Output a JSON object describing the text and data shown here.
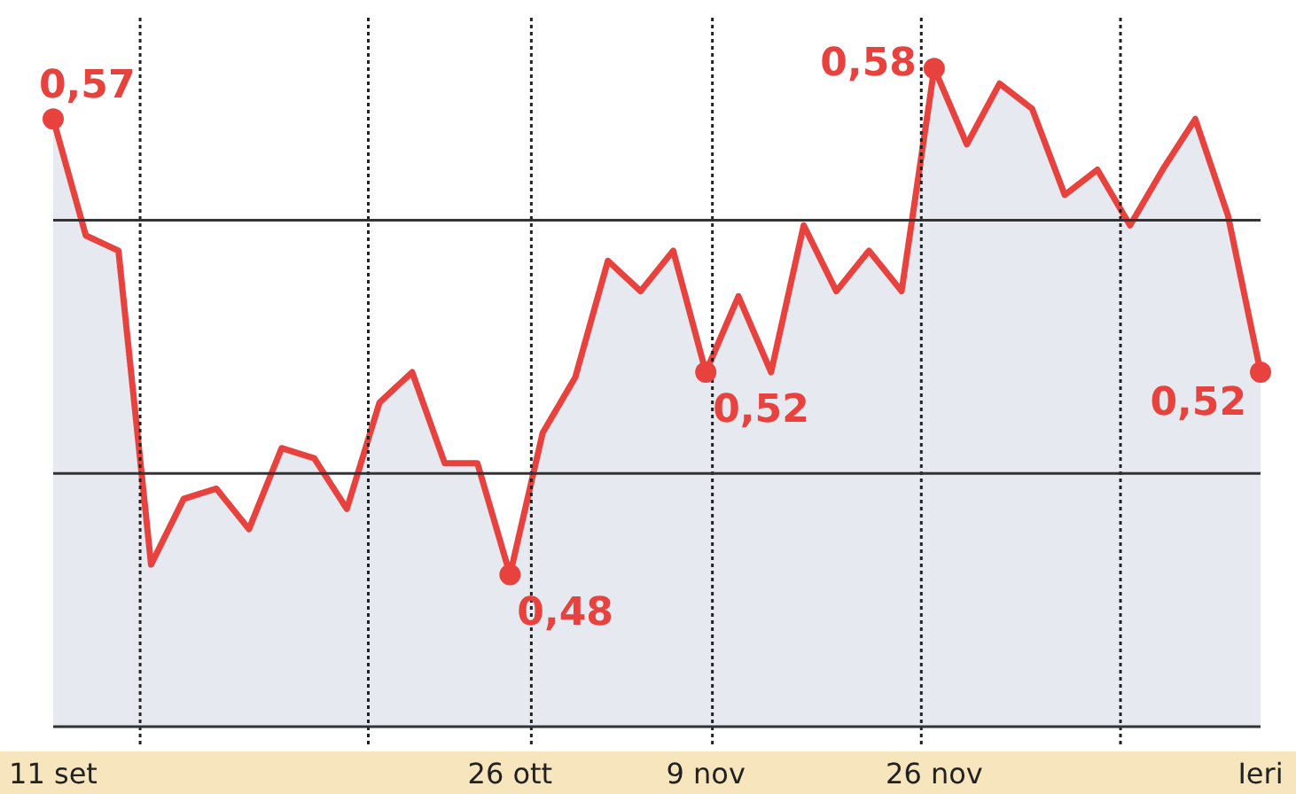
{
  "chart_data": {
    "type": "area",
    "categories": [
      "11 set",
      null,
      null,
      null,
      null,
      null,
      null,
      null,
      null,
      null,
      null,
      null,
      null,
      null,
      "26 ott",
      null,
      null,
      null,
      null,
      null,
      "9 nov",
      null,
      null,
      null,
      null,
      null,
      null,
      "26 nov",
      null,
      null,
      null,
      null,
      null,
      null,
      null,
      null,
      null,
      "Ieri"
    ],
    "series": [
      {
        "color": "#e8423f",
        "values": [
          0.57,
          0.547,
          0.544,
          0.482,
          0.495,
          0.497,
          0.489,
          0.505,
          0.503,
          0.493,
          0.514,
          0.52,
          0.502,
          0.502,
          0.48,
          0.508,
          0.519,
          0.542,
          0.536,
          0.544,
          0.52,
          0.535,
          0.52,
          0.549,
          0.536,
          0.544,
          0.536,
          0.58,
          0.565,
          0.577,
          0.572,
          0.555,
          0.56,
          0.549,
          0.56,
          0.57,
          0.551,
          0.52
        ],
        "value_labels": [
          "0,57",
          null,
          null,
          null,
          null,
          null,
          null,
          null,
          null,
          null,
          null,
          null,
          null,
          null,
          "0,48",
          null,
          null,
          null,
          null,
          null,
          "0,52",
          null,
          null,
          null,
          null,
          null,
          null,
          "0,58",
          null,
          null,
          null,
          null,
          null,
          null,
          null,
          null,
          null,
          "0,52"
        ]
      }
    ],
    "ylim": [
      0.45,
      0.59
    ],
    "tick_labels": "x",
    "ref_lines": [
      {
        "axis": "y",
        "value": 0.45,
        "color": "#333333",
        "line_style": "solid"
      },
      {
        "axis": "y",
        "value": 0.5,
        "color": "#333333",
        "line_style": "solid"
      },
      {
        "axis": "y",
        "value": 0.55,
        "color": "#333333",
        "line_style": "solid"
      }
    ]
  }
}
